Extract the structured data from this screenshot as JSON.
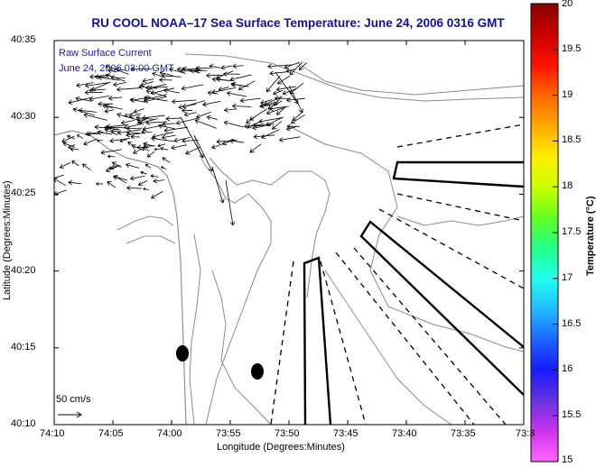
{
  "title": "RU COOL  NOAA–17  Sea Surface Temperature:  June 24, 2006 0316 GMT",
  "legend": {
    "line1": "Raw Surface Current",
    "line2": "June 24, 2006 03:00 GMT",
    "scale_label": "50 cm/s"
  },
  "axes": {
    "ylabel": "Latitude (Degrees:Minutes)",
    "xlabel": "Longitude (Degrees:Minutes)",
    "yticks": [
      "40:35",
      "40:30",
      "40:25",
      "40:20",
      "40:15",
      "40:10"
    ],
    "xticks": [
      "74:10",
      "74:05",
      "74:00",
      "73:55",
      "73:50",
      "73:45",
      "73:40",
      "73:35",
      "73:3"
    ]
  },
  "colorbar": {
    "label": "Temperature (°C)",
    "ticks": [
      "20",
      "19.5",
      "19",
      "18.5",
      "18",
      "17.5",
      "17",
      "16.5",
      "16",
      "15.5",
      "15"
    ],
    "colors": [
      "#ff66ff",
      "#cc33ee",
      "#6633dd",
      "#1a1aff",
      "#1a66ff",
      "#22bbff",
      "#22ffee",
      "#22ff88",
      "#66ff22",
      "#ccff00",
      "#ffee00",
      "#ffaa00",
      "#ff6600",
      "#ff1100",
      "#cc0000",
      "#880000"
    ]
  },
  "colors": {
    "title": "#1010a0",
    "contour": "#8a8a8a",
    "coast": "#909090",
    "arrows": "#000000",
    "frame": "#000000"
  }
}
